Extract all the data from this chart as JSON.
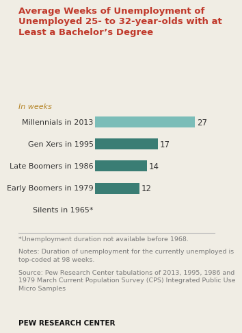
{
  "title": "Average Weeks of Unemployment of\nUnemployed 25- to 32-year-olds with at\nLeast a Bachelor’s Degree",
  "subtitle": "In weeks",
  "categories": [
    "Millennials in 2013",
    "Gen Xers in 1995",
    "Late Boomers in 1986",
    "Early Boomers in 1979",
    "Silents in 1965*"
  ],
  "values": [
    27,
    17,
    14,
    12,
    null
  ],
  "bar_colors": [
    "#7bbdb8",
    "#3a7d74",
    "#3a7d74",
    "#3a7d74",
    null
  ],
  "value_labels": [
    "27",
    "17",
    "14",
    "12",
    ""
  ],
  "footnote1": "*Unemployment duration not available before 1968.",
  "footnote2": "Notes: Duration of unemployment for the currently unemployed is\ntop-coded at 98 weeks.",
  "footnote3": "Source: Pew Research Center tabulations of 2013, 1995, 1986 and\n1979 March Current Population Survey (CPS) Integrated Public Use\nMicro Samples",
  "branding": "PEW RESEARCH CENTER",
  "bg_color": "#f0ede4",
  "title_color": "#c0392b",
  "subtitle_color": "#b5862a",
  "footnote_color": "#7a7a7a",
  "branding_color": "#111111",
  "xlim": [
    0,
    30
  ],
  "bar_height": 0.5,
  "title_fontsize": 9.5,
  "subtitle_fontsize": 8,
  "label_fontsize": 8,
  "value_fontsize": 8.5,
  "footnote_fontsize": 6.8,
  "branding_fontsize": 7.5
}
